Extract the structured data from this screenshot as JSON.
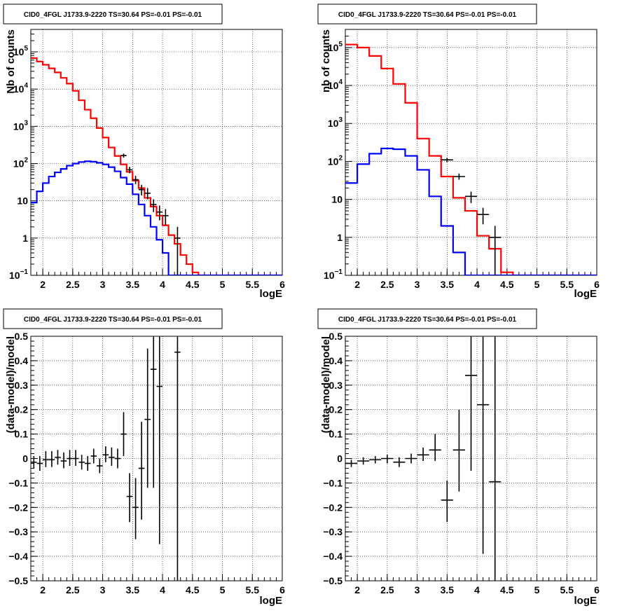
{
  "chart_data": [
    {
      "type": "histogram",
      "title": "CID0_4FGL J1733.9-2220 TS=30.64 PS=-0.01 PS=-0.01",
      "xlabel": "logE",
      "ylabel": "Nb of counts",
      "xlim": [
        1.8,
        6.0
      ],
      "ylim": [
        0.1,
        400000
      ],
      "ylog": true,
      "grid": true,
      "xticks": [
        "2",
        "2.5",
        "3",
        "3.5",
        "4",
        "4.5",
        "5",
        "5.5",
        "6"
      ],
      "yticks": [
        {
          "v": 0.1,
          "base": "10",
          "exp": "−1"
        },
        {
          "v": 1,
          "base": "1",
          "exp": ""
        },
        {
          "v": 10,
          "base": "10",
          "exp": ""
        },
        {
          "v": 100,
          "base": "10",
          "exp": "2"
        },
        {
          "v": 1000,
          "base": "10",
          "exp": "3"
        },
        {
          "v": 10000,
          "base": "10",
          "exp": "4"
        },
        {
          "v": 100000,
          "base": "10",
          "exp": "5"
        }
      ],
      "bin_width": 0.1,
      "series": [
        {
          "color": "#ff0000",
          "x0": 1.8,
          "values": [
            68000,
            55000,
            45000,
            36000,
            28000,
            20000,
            14000,
            9000,
            5000,
            2800,
            1650,
            900,
            500,
            270,
            160,
            95,
            60,
            35,
            22,
            12,
            7,
            4,
            2.2,
            1.2,
            0.7,
            0.35,
            0.2,
            0.12,
            0.09,
            0.09,
            0.09,
            0.09,
            0.09,
            0.09,
            0.09,
            0.09,
            0.09,
            0.09,
            0.09,
            0.09,
            0.09,
            0.09
          ]
        },
        {
          "color": "#0000ff",
          "x0": 1.8,
          "values": [
            9,
            18,
            30,
            45,
            58,
            72,
            88,
            100,
            110,
            115,
            112,
            105,
            95,
            80,
            62,
            42,
            28,
            15,
            8,
            4,
            2,
            0.9,
            0.4,
            0.09,
            0.09,
            0.09,
            0.09,
            0.09,
            0.09,
            0.09,
            0.09,
            0.09,
            0.09,
            0.09,
            0.09,
            0.09,
            0.09,
            0.09,
            0.09,
            0.09,
            0.09,
            0.09
          ]
        }
      ],
      "points": [
        {
          "x": 3.35,
          "y": 165,
          "ylo": 145,
          "yhi": 185
        },
        {
          "x": 3.45,
          "y": 68,
          "ylo": 55,
          "yhi": 82
        },
        {
          "x": 3.55,
          "y": 37,
          "ylo": 28,
          "yhi": 47
        },
        {
          "x": 3.65,
          "y": 20,
          "ylo": 14,
          "yhi": 27
        },
        {
          "x": 3.75,
          "y": 16,
          "ylo": 11,
          "yhi": 22
        },
        {
          "x": 3.85,
          "y": 8,
          "ylo": 5,
          "yhi": 11
        },
        {
          "x": 3.95,
          "y": 5,
          "ylo": 3,
          "yhi": 7.5
        },
        {
          "x": 4.05,
          "y": 4,
          "ylo": 2.2,
          "yhi": 6
        },
        {
          "x": 4.25,
          "y": 1,
          "ylo": 0.1,
          "yhi": 2
        }
      ]
    },
    {
      "type": "histogram",
      "title": "CID0_4FGL J1733.9-2220 TS=30.64 PS=-0.01 PS=-0.01",
      "xlabel": "logE",
      "ylabel": "nb of counts",
      "xlim": [
        1.8,
        6.0
      ],
      "ylim": [
        0.1,
        300000
      ],
      "ylog": true,
      "grid": true,
      "xticks": [
        "2",
        "2.5",
        "3",
        "3.5",
        "4",
        "4.5",
        "5",
        "5.5",
        "6"
      ],
      "yticks": [
        {
          "v": 0.1,
          "base": "10",
          "exp": "−1"
        },
        {
          "v": 1,
          "base": "1",
          "exp": ""
        },
        {
          "v": 10,
          "base": "10",
          "exp": ""
        },
        {
          "v": 100,
          "base": "10",
          "exp": "2"
        },
        {
          "v": 1000,
          "base": "10",
          "exp": "3"
        },
        {
          "v": 10000,
          "base": "10",
          "exp": "4"
        },
        {
          "v": 100000,
          "base": "10",
          "exp": "5"
        }
      ],
      "bin_width": 0.2,
      "series": [
        {
          "color": "#ff0000",
          "x0": 1.8,
          "values": [
            120000,
            100000,
            60000,
            28000,
            11000,
            3500,
            400,
            140,
            40,
            11,
            5,
            1.1,
            0.5,
            0.12,
            0.09,
            0.09,
            0.09,
            0.09,
            0.09,
            0.09,
            0.09
          ]
        },
        {
          "color": "#0000ff",
          "x0": 1.8,
          "values": [
            27,
            85,
            160,
            220,
            210,
            140,
            60,
            12,
            2,
            0.4,
            0.09,
            0.09,
            0.09,
            0.09,
            0.09,
            0.09,
            0.09,
            0.09,
            0.09,
            0.09,
            0.09
          ]
        }
      ],
      "points": [
        {
          "x": 3.5,
          "y": 110,
          "ylo": 95,
          "yhi": 125
        },
        {
          "x": 3.7,
          "y": 40,
          "ylo": 33,
          "yhi": 48
        },
        {
          "x": 3.9,
          "y": 12,
          "ylo": 8,
          "yhi": 16
        },
        {
          "x": 4.1,
          "y": 4,
          "ylo": 2.2,
          "yhi": 6
        },
        {
          "x": 4.3,
          "y": 1,
          "ylo": 0.1,
          "yhi": 2
        }
      ]
    },
    {
      "type": "scatter",
      "title": "CID0_4FGL J1733.9-2220 TS=30.64 PS=-0.01 PS=-0.01",
      "xlabel": "logE",
      "ylabel": "(data-model)/model",
      "xlim": [
        1.8,
        6.0
      ],
      "ylim": [
        -0.5,
        0.5
      ],
      "ylog": false,
      "grid": true,
      "xticks": [
        "2",
        "2.5",
        "3",
        "3.5",
        "4",
        "4.5",
        "5",
        "5.5",
        "6"
      ],
      "yticks": [
        {
          "v": -0.5,
          "t": "−0.5"
        },
        {
          "v": -0.4,
          "t": "−0.4"
        },
        {
          "v": -0.3,
          "t": "−0.3"
        },
        {
          "v": -0.2,
          "t": "−0.2"
        },
        {
          "v": -0.1,
          "t": "−0.1"
        },
        {
          "v": 0,
          "t": "0"
        },
        {
          "v": 0.1,
          "t": "0.1"
        },
        {
          "v": 0.2,
          "t": "0.2"
        },
        {
          "v": 0.3,
          "t": "0.3"
        },
        {
          "v": 0.4,
          "t": "0.4"
        },
        {
          "v": 0.5,
          "t": "0.5"
        }
      ],
      "points": [
        {
          "x": 1.85,
          "dx": 0.05,
          "y": -0.015,
          "ylo": -0.04,
          "yhi": 0.01
        },
        {
          "x": 1.95,
          "dx": 0.05,
          "y": -0.02,
          "ylo": -0.05,
          "yhi": 0.01
        },
        {
          "x": 2.05,
          "dx": 0.05,
          "y": -0.005,
          "ylo": -0.035,
          "yhi": 0.03
        },
        {
          "x": 2.15,
          "dx": 0.05,
          "y": -0.005,
          "ylo": -0.035,
          "yhi": 0.03
        },
        {
          "x": 2.25,
          "dx": 0.05,
          "y": 0.005,
          "ylo": -0.025,
          "yhi": 0.035
        },
        {
          "x": 2.35,
          "dx": 0.05,
          "y": -0.01,
          "ylo": -0.04,
          "yhi": 0.025
        },
        {
          "x": 2.45,
          "dx": 0.05,
          "y": 0.0,
          "ylo": -0.03,
          "yhi": 0.035
        },
        {
          "x": 2.55,
          "dx": 0.05,
          "y": 0.0,
          "ylo": -0.03,
          "yhi": 0.035
        },
        {
          "x": 2.65,
          "dx": 0.05,
          "y": -0.015,
          "ylo": -0.045,
          "yhi": 0.015
        },
        {
          "x": 2.75,
          "dx": 0.05,
          "y": -0.02,
          "ylo": -0.05,
          "yhi": 0.01
        },
        {
          "x": 2.85,
          "dx": 0.05,
          "y": 0.01,
          "ylo": -0.02,
          "yhi": 0.04
        },
        {
          "x": 2.95,
          "dx": 0.05,
          "y": -0.03,
          "ylo": -0.06,
          "yhi": 0.0
        },
        {
          "x": 3.05,
          "dx": 0.05,
          "y": 0.015,
          "ylo": -0.015,
          "yhi": 0.05
        },
        {
          "x": 3.15,
          "dx": 0.05,
          "y": 0.005,
          "ylo": -0.03,
          "yhi": 0.045
        },
        {
          "x": 3.25,
          "dx": 0.05,
          "y": 0.0,
          "ylo": -0.04,
          "yhi": 0.04
        },
        {
          "x": 3.35,
          "dx": 0.05,
          "y": 0.1,
          "ylo": 0.01,
          "yhi": 0.19
        },
        {
          "x": 3.45,
          "dx": 0.05,
          "y": -0.155,
          "ylo": -0.26,
          "yhi": -0.06
        },
        {
          "x": 3.55,
          "dx": 0.05,
          "y": -0.2,
          "ylo": -0.33,
          "yhi": -0.08
        },
        {
          "x": 3.65,
          "dx": 0.05,
          "y": -0.04,
          "ylo": -0.25,
          "yhi": 0.15
        },
        {
          "x": 3.75,
          "dx": 0.05,
          "y": 0.16,
          "ylo": -0.12,
          "yhi": 0.45
        },
        {
          "x": 3.85,
          "dx": 0.05,
          "y": 0.365,
          "ylo": -0.12,
          "yhi": 0.5
        },
        {
          "x": 3.95,
          "dx": 0.05,
          "y": 0.295,
          "ylo": -0.35,
          "yhi": 0.5
        },
        {
          "x": 4.25,
          "dx": 0.05,
          "y": 0.435,
          "ylo": -0.5,
          "yhi": 0.5
        }
      ]
    },
    {
      "type": "scatter",
      "title": "CID0_4FGL J1733.9-2220 TS=30.64 PS=-0.01 PS=-0.01",
      "xlabel": "logE",
      "ylabel": "(data-model)/model",
      "xlim": [
        1.8,
        6.0
      ],
      "ylim": [
        -0.5,
        0.5
      ],
      "ylog": false,
      "grid": true,
      "xticks": [
        "2",
        "2.5",
        "3",
        "3.5",
        "4",
        "4.5",
        "5",
        "5.5",
        "6"
      ],
      "yticks": [
        {
          "v": -0.5,
          "t": "−0.5"
        },
        {
          "v": -0.4,
          "t": "−0.4"
        },
        {
          "v": -0.3,
          "t": "−0.3"
        },
        {
          "v": -0.2,
          "t": "−0.2"
        },
        {
          "v": -0.1,
          "t": "−0.1"
        },
        {
          "v": 0,
          "t": "0"
        },
        {
          "v": 0.1,
          "t": "0.1"
        },
        {
          "v": 0.2,
          "t": "0.2"
        },
        {
          "v": 0.3,
          "t": "0.3"
        },
        {
          "v": 0.4,
          "t": "0.4"
        },
        {
          "v": 0.5,
          "t": "0.5"
        }
      ],
      "points": [
        {
          "x": 1.9,
          "dx": 0.1,
          "y": -0.02,
          "ylo": -0.035,
          "yhi": -0.005
        },
        {
          "x": 2.1,
          "dx": 0.1,
          "y": -0.01,
          "ylo": -0.025,
          "yhi": 0.005
        },
        {
          "x": 2.3,
          "dx": 0.1,
          "y": -0.005,
          "ylo": -0.02,
          "yhi": 0.01
        },
        {
          "x": 2.5,
          "dx": 0.1,
          "y": 0.0,
          "ylo": -0.02,
          "yhi": 0.015
        },
        {
          "x": 2.7,
          "dx": 0.1,
          "y": -0.015,
          "ylo": -0.035,
          "yhi": 0.005
        },
        {
          "x": 2.9,
          "dx": 0.1,
          "y": 0.0,
          "ylo": -0.02,
          "yhi": 0.02
        },
        {
          "x": 3.1,
          "dx": 0.1,
          "y": 0.015,
          "ylo": -0.01,
          "yhi": 0.045
        },
        {
          "x": 3.3,
          "dx": 0.1,
          "y": 0.035,
          "ylo": -0.01,
          "yhi": 0.1
        },
        {
          "x": 3.5,
          "dx": 0.1,
          "y": -0.17,
          "ylo": -0.26,
          "yhi": -0.09
        },
        {
          "x": 3.7,
          "dx": 0.1,
          "y": 0.035,
          "ylo": -0.135,
          "yhi": 0.2
        },
        {
          "x": 3.9,
          "dx": 0.1,
          "y": 0.34,
          "ylo": -0.05,
          "yhi": 0.5
        },
        {
          "x": 4.1,
          "dx": 0.1,
          "y": 0.22,
          "ylo": -0.39,
          "yhi": 0.5
        },
        {
          "x": 4.3,
          "dx": 0.1,
          "y": -0.095,
          "ylo": -0.5,
          "yhi": 0.5
        }
      ]
    }
  ]
}
